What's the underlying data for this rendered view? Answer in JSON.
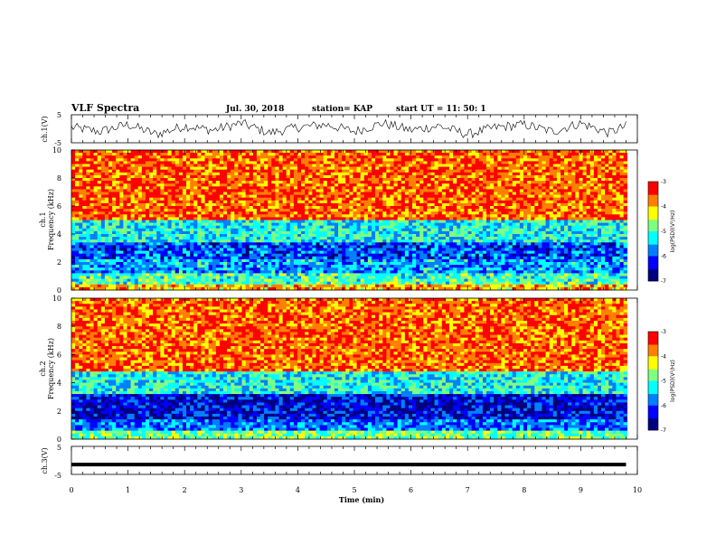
{
  "header": {
    "title": "VLF Spectra",
    "date": "Jul. 30, 2018",
    "station": "station= KAP",
    "start": "start  UT  =   11: 50: 1"
  },
  "chart_data": [
    {
      "type": "line",
      "name": "ch1-voltage",
      "ylabel": "ch.1(V)",
      "ylim": [
        -5,
        5
      ],
      "yticks": [
        "5",
        "-5"
      ],
      "xlim": [
        0,
        10
      ],
      "x": [
        0,
        0.5,
        1,
        1.5,
        2,
        2.5,
        3,
        3.5,
        4,
        4.5,
        5,
        5.5,
        6,
        6.5,
        7,
        7.5,
        8,
        8.5,
        9,
        9.5,
        9.8
      ],
      "y": [
        0.5,
        -1,
        1.5,
        -2,
        1,
        -0.5,
        2,
        -1.5,
        0.5,
        1.5,
        -1,
        2,
        -0.5,
        1,
        -2,
        0.5,
        1.5,
        -1,
        2,
        -1.5,
        1
      ]
    },
    {
      "type": "heatmap",
      "name": "ch1-spectrogram",
      "ylabel": "ch.1",
      "ylabel2": "Frequency (kHz)",
      "ylim": [
        0,
        10
      ],
      "yticks": [
        "0",
        "2",
        "4",
        "6",
        "8",
        "10"
      ],
      "xlim": [
        0,
        10
      ],
      "bands": [
        {
          "from": 0,
          "to": 0.5,
          "level": 0.75
        },
        {
          "from": 0.5,
          "to": 1.2,
          "level": 0.5
        },
        {
          "from": 1.2,
          "to": 2.2,
          "level": 0.35
        },
        {
          "from": 2.2,
          "to": 3.5,
          "level": 0.25
        },
        {
          "from": 3.5,
          "to": 5.0,
          "level": 0.45
        },
        {
          "from": 5.0,
          "to": 10,
          "level": 0.85
        }
      ],
      "colorbar": {
        "label": "log(PSD)(V²/Hz)",
        "ticks": [
          "-3",
          "-4",
          "-5",
          "-6",
          "-7"
        ],
        "range": [
          -7,
          -3
        ]
      }
    },
    {
      "type": "heatmap",
      "name": "ch2-spectrogram",
      "ylabel": "ch.2",
      "ylabel2": "Frequency (kHz)",
      "ylim": [
        0,
        10
      ],
      "yticks": [
        "0",
        "2",
        "4",
        "6",
        "8",
        "10"
      ],
      "xlim": [
        0,
        10
      ],
      "bands": [
        {
          "from": 0,
          "to": 0.6,
          "level": 0.55
        },
        {
          "from": 0.6,
          "to": 1.4,
          "level": 0.3
        },
        {
          "from": 1.4,
          "to": 3.2,
          "level": 0.15
        },
        {
          "from": 3.2,
          "to": 4.8,
          "level": 0.45
        },
        {
          "from": 4.8,
          "to": 10,
          "level": 0.85
        }
      ],
      "colorbar": {
        "label": "log(PSD)(V²/Hz)",
        "ticks": [
          "-3",
          "-4",
          "-5",
          "-6",
          "-7"
        ],
        "range": [
          -7,
          -3
        ]
      }
    },
    {
      "type": "line",
      "name": "ch3-voltage",
      "ylabel": "ch.3(V)",
      "ylim": [
        -5,
        5
      ],
      "yticks": [
        "5",
        "-5"
      ],
      "xlim": [
        0,
        10
      ],
      "x": [
        0,
        9.8
      ],
      "y": [
        -1.5,
        -1.5
      ]
    }
  ],
  "xaxis": {
    "label": "Time (min)",
    "ticks": [
      "0",
      "1",
      "2",
      "3",
      "4",
      "5",
      "6",
      "7",
      "8",
      "9",
      "10"
    ]
  },
  "colors": {
    "colormap": [
      "#00007f",
      "#0000ff",
      "#007fff",
      "#00ffff",
      "#7fff7f",
      "#ffff00",
      "#ff7f00",
      "#ff0000"
    ]
  }
}
